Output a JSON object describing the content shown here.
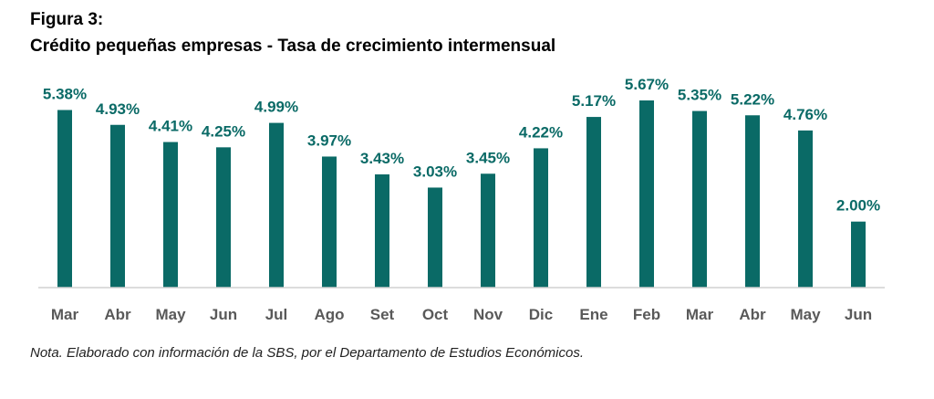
{
  "figure": {
    "label": "Figura 3:",
    "title": "Crédito pequeñas empresas - Tasa de crecimiento intermensual",
    "note": "Nota. Elaborado con información de la SBS, por el Departamento de Estudios Económicos."
  },
  "colors": {
    "bar": "#0a6a66",
    "label": "#0a6a66",
    "tick": "#595959",
    "axis": "#d0d0d0"
  },
  "chart_data": {
    "type": "bar",
    "title": "Crédito pequeñas empresas - Tasa de crecimiento intermensual",
    "categories": [
      "Mar",
      "Abr",
      "May",
      "Jun",
      "Jul",
      "Ago",
      "Set",
      "Oct",
      "Nov",
      "Dic",
      "Ene",
      "Feb",
      "Mar",
      "Abr",
      "May",
      "Jun"
    ],
    "values": [
      5.38,
      4.93,
      4.41,
      4.25,
      4.99,
      3.97,
      3.43,
      3.03,
      3.45,
      4.22,
      5.17,
      5.67,
      5.35,
      5.22,
      4.76,
      2.0
    ],
    "data_labels": [
      "5.38%",
      "4.93%",
      "4.41%",
      "4.25%",
      "4.99%",
      "3.97%",
      "3.43%",
      "3.03%",
      "3.45%",
      "4.22%",
      "5.17%",
      "5.67%",
      "5.35%",
      "5.22%",
      "4.76%",
      "2.00%"
    ],
    "xlabel": "",
    "ylabel": "",
    "ylim": [
      0,
      5.67
    ],
    "grid": false,
    "legend": "none"
  }
}
